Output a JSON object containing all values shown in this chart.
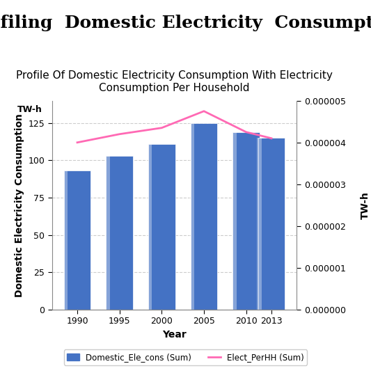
{
  "title": "Profiling  Domestic Electricity  Consumption",
  "subtitle": "Profile Of Domestic Electricity Consumption With Electricity\nConsumption Per Household",
  "years": [
    1990,
    1995,
    2000,
    2005,
    2010,
    2013
  ],
  "bar_values": [
    93,
    103,
    111,
    125,
    119,
    115
  ],
  "line_values": [
    4e-06,
    4.2e-06,
    4.35e-06,
    4.75e-06,
    4.25e-06,
    4.1e-06
  ],
  "bar_color_edge": "#3a5aab",
  "bar_color_face": "#4472c4",
  "line_color": "#ff69b4",
  "ylabel_left": "Domestic Electricity Consumption",
  "ylabel_left_unit": "TW-h",
  "ylabel_right": "TW-h",
  "xlabel": "Year",
  "ylim_left": [
    0,
    140
  ],
  "ylim_right": [
    0,
    5e-06
  ],
  "yticks_left": [
    0,
    25,
    50,
    75,
    100,
    125
  ],
  "yticks_right": [
    0.0,
    1e-06,
    2e-06,
    3e-06,
    4e-06,
    5e-06
  ],
  "legend_bar_label": "Domestic_Ele_cons (Sum)",
  "legend_line_label": "Elect_PerHH (Sum)",
  "bg_color": "#ffffff",
  "grid_color": "#cccccc",
  "title_fontsize": 18,
  "subtitle_fontsize": 11,
  "axis_label_fontsize": 10,
  "tick_fontsize": 9,
  "bar_width": 3.2
}
